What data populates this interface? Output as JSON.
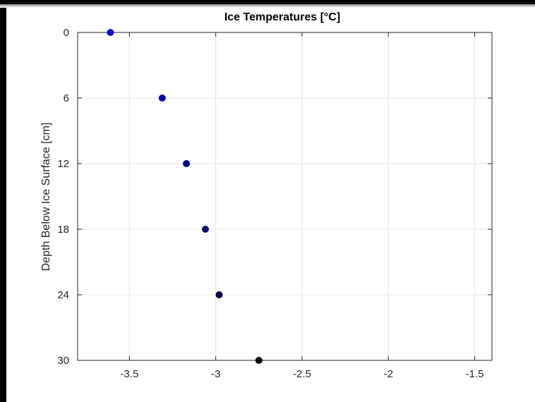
{
  "chart_data": {
    "type": "scatter",
    "title": "Ice Temperatures [°C]",
    "xlabel": "",
    "ylabel": "Depth Below Ice Surface [cm]",
    "xlim": [
      -3.8,
      -1.4
    ],
    "ylim": [
      0,
      30
    ],
    "y_reversed": true,
    "xticks": [
      -3.5,
      -3,
      -2.5,
      -2,
      -1.5
    ],
    "xtick_labels": [
      "-3.5",
      "-3",
      "-2.5",
      "-2",
      "-1.5"
    ],
    "yticks": [
      0,
      6,
      12,
      18,
      24,
      30
    ],
    "ytick_labels": [
      "0",
      "6",
      "12",
      "18",
      "24",
      "30"
    ],
    "grid": true,
    "points": [
      {
        "x": -3.61,
        "y": 0,
        "color": "#0a0ad0"
      },
      {
        "x": -3.31,
        "y": 6,
        "color": "#0808aa"
      },
      {
        "x": -3.17,
        "y": 12,
        "color": "#06068a"
      },
      {
        "x": -3.06,
        "y": 18,
        "color": "#05056a"
      },
      {
        "x": -2.98,
        "y": 24,
        "color": "#03034a"
      },
      {
        "x": -2.75,
        "y": 30,
        "color": "#000000"
      }
    ]
  }
}
